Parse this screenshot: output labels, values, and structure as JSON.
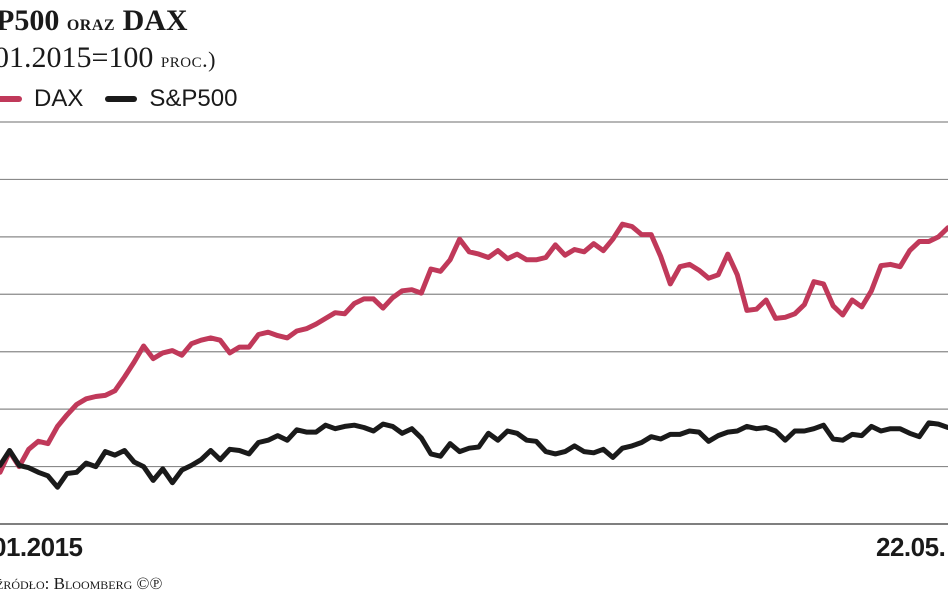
{
  "header": {
    "title_main": "P500",
    "title_oraz": "oraz",
    "title_dax": "DAX",
    "subtitle_main": "01.2015=100",
    "subtitle_unit": "proc.)"
  },
  "footer": {
    "x_start_label": "01.2015",
    "x_end_label": "22.05.",
    "source": "źródło: Bloomberg ©℗"
  },
  "colors": {
    "dax": "#c0395a",
    "sp500": "#1a1a1a",
    "grid": "#8a8a8a"
  },
  "chart_data": {
    "type": "line",
    "title": "",
    "xlabel": "",
    "ylabel": "",
    "ylim": [
      94,
      129
    ],
    "grid": true,
    "legend": "top-left",
    "x": [
      0,
      2,
      4,
      6,
      8,
      10,
      12,
      14,
      16,
      18,
      20,
      22,
      24,
      26,
      28,
      30,
      32,
      34,
      36,
      38,
      40,
      42,
      44,
      46,
      48,
      50,
      52,
      54,
      56,
      58,
      60,
      62,
      64,
      66,
      68,
      70,
      72,
      74,
      76,
      78,
      80,
      82,
      84,
      86,
      88,
      90,
      92,
      94,
      96,
      98,
      100,
      102,
      104,
      106,
      108,
      110,
      112,
      114,
      116,
      118,
      120,
      122,
      124,
      126,
      128,
      130,
      132,
      134,
      136,
      138,
      140,
      142,
      144,
      146,
      148,
      150,
      152,
      154,
      156,
      158,
      160,
      162,
      164,
      166,
      168,
      170,
      172,
      174,
      176,
      178,
      180,
      182,
      184,
      186,
      188,
      190,
      192,
      194,
      196,
      198
    ],
    "series": [
      {
        "name": "DAX",
        "values": [
          98.5,
          100.3,
          99.0,
          100.5,
          101.2,
          101.0,
          102.5,
          103.5,
          104.4,
          104.9,
          105.1,
          105.2,
          105.6,
          106.8,
          108.1,
          109.5,
          108.4,
          108.9,
          109.1,
          108.7,
          109.7,
          110.0,
          110.2,
          110.0,
          108.9,
          109.4,
          109.4,
          110.5,
          110.7,
          110.4,
          110.2,
          110.8,
          111.0,
          111.4,
          111.9,
          112.4,
          112.3,
          113.2,
          113.6,
          113.6,
          112.8,
          113.7,
          114.3,
          114.4,
          114.1,
          116.2,
          116.0,
          117.0,
          118.8,
          117.7,
          117.5,
          117.2,
          117.8,
          117.1,
          117.5,
          117.0,
          117.0,
          117.2,
          118.3,
          117.4,
          117.9,
          117.7,
          118.4,
          117.8,
          118.8,
          120.1,
          119.9,
          119.2,
          119.2,
          117.3,
          114.9,
          116.4,
          116.6,
          116.1,
          115.4,
          115.7,
          117.5,
          115.7,
          112.6,
          112.7,
          113.5,
          111.9,
          112.0,
          112.3,
          113.1,
          115.1,
          114.9,
          113.0,
          112.2,
          113.5,
          112.9,
          114.3,
          116.5,
          116.6,
          116.4,
          117.8,
          118.6,
          118.6,
          119.0,
          119.8
        ]
      },
      {
        "name": "S&P500",
        "values": [
          99.1,
          100.4,
          99.1,
          98.9,
          98.5,
          98.2,
          97.2,
          98.4,
          98.5,
          99.3,
          99.0,
          100.3,
          100.0,
          100.4,
          99.4,
          99.0,
          97.8,
          98.8,
          97.6,
          98.7,
          99.1,
          99.6,
          100.4,
          99.6,
          100.5,
          100.4,
          100.1,
          101.1,
          101.3,
          101.7,
          101.3,
          102.2,
          102.0,
          102.0,
          102.6,
          102.3,
          102.5,
          102.6,
          102.4,
          102.1,
          102.7,
          102.5,
          101.9,
          102.3,
          101.5,
          100.1,
          99.9,
          101.0,
          100.3,
          100.6,
          100.7,
          101.9,
          101.3,
          102.1,
          101.9,
          101.3,
          101.2,
          100.3,
          100.1,
          100.3,
          100.8,
          100.3,
          100.2,
          100.5,
          99.8,
          100.6,
          100.8,
          101.1,
          101.6,
          101.4,
          101.8,
          101.8,
          102.1,
          102.0,
          101.2,
          101.7,
          102.0,
          102.1,
          102.5,
          102.3,
          102.4,
          102.1,
          101.3,
          102.1,
          102.1,
          102.3,
          102.6,
          101.4,
          101.3,
          101.8,
          101.7,
          102.5,
          102.1,
          102.3,
          102.3,
          101.9,
          101.6,
          102.8,
          102.7,
          102.4
        ]
      }
    ]
  }
}
